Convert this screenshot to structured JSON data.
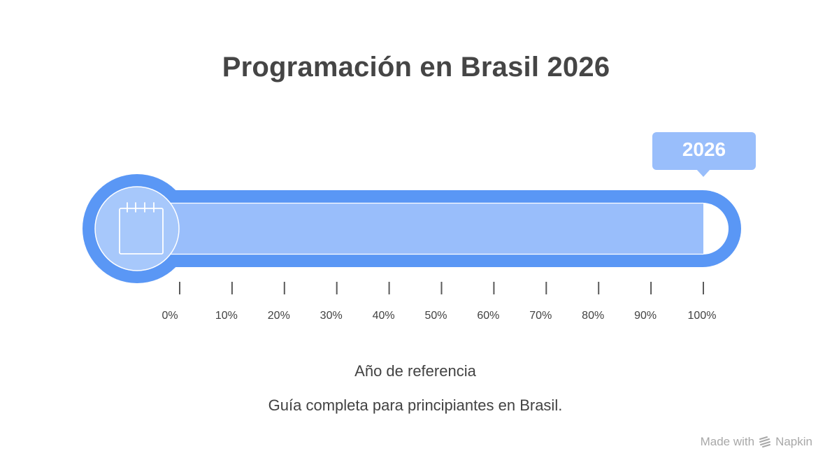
{
  "title": "Programación en Brasil 2026",
  "callout": {
    "label": "2026"
  },
  "progress": {
    "value_percent": 100,
    "ticks": [
      "0%",
      "10%",
      "20%",
      "30%",
      "40%",
      "50%",
      "60%",
      "70%",
      "80%",
      "90%",
      "100%"
    ]
  },
  "subtitle": "Año de referencia",
  "description": "Guía completa para principiantes en Brasil.",
  "watermark": {
    "made_with": "Made with",
    "brand": "Napkin"
  },
  "icons": {
    "bulb": "calendar-icon",
    "brand": "napkin-logo-icon"
  },
  "colors": {
    "frame": "#5a97f5",
    "fill": "#99befb",
    "bulb_inner": "#a7c8fb",
    "title": "#454545",
    "text": "#424242",
    "tick": "#5a5a5a",
    "watermark": "#a8a8a8"
  }
}
